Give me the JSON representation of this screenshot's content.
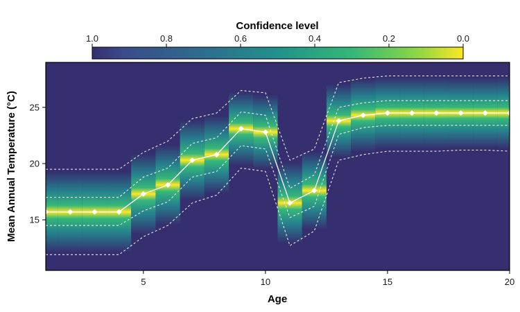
{
  "chart_data": {
    "type": "heatmap",
    "title": "",
    "xlabel": "Age",
    "ylabel": "Mean Annual Temperature (°C)",
    "xlim": [
      1,
      20
    ],
    "ylim": [
      10.5,
      29
    ],
    "x_ticks": [
      5,
      10,
      15,
      20
    ],
    "y_ticks": [
      15,
      20,
      25
    ],
    "colorbar": {
      "title": "Confidence level",
      "ticks": [
        "1.0",
        "0.8",
        "0.6",
        "0.4",
        "0.2",
        "0.0"
      ],
      "placement": "top",
      "colors": [
        "#352e6f",
        "#26828e",
        "#35b779",
        "#fde725"
      ]
    },
    "series": [
      {
        "x": [
          1,
          2,
          3,
          4,
          5,
          6,
          7,
          8,
          9,
          10,
          11,
          12,
          13,
          14,
          15,
          16,
          17,
          18,
          19,
          20
        ],
        "mean": [
          15.7,
          15.7,
          15.7,
          15.7,
          17.3,
          18.1,
          20.3,
          20.8,
          23.1,
          22.8,
          16.5,
          17.6,
          23.8,
          24.3,
          24.5,
          24.5,
          24.5,
          24.5,
          24.5,
          24.5
        ],
        "inner_upper": [
          17.0,
          17.0,
          17.0,
          17.0,
          18.8,
          19.6,
          21.8,
          22.3,
          24.6,
          24.3,
          17.8,
          19.0,
          25.0,
          25.4,
          25.6,
          25.6,
          25.6,
          25.6,
          25.6,
          25.6
        ],
        "inner_lower": [
          14.5,
          14.5,
          14.5,
          14.5,
          15.8,
          16.6,
          18.8,
          19.3,
          21.6,
          21.3,
          15.2,
          16.2,
          22.6,
          23.2,
          23.4,
          23.4,
          23.4,
          23.4,
          23.4,
          23.4
        ],
        "outer_upper": [
          19.5,
          19.5,
          19.5,
          19.5,
          21.0,
          22.0,
          24.0,
          24.5,
          26.5,
          26.3,
          20.3,
          21.3,
          27.2,
          27.6,
          27.8,
          27.8,
          27.8,
          27.8,
          27.8,
          27.8
        ],
        "outer_lower": [
          11.9,
          11.9,
          11.9,
          11.9,
          13.5,
          14.5,
          16.5,
          17.2,
          19.6,
          19.3,
          12.7,
          14.0,
          20.3,
          20.8,
          21.1,
          21.1,
          21.1,
          21.2,
          21.2,
          21.1
        ]
      }
    ],
    "grid": false
  }
}
